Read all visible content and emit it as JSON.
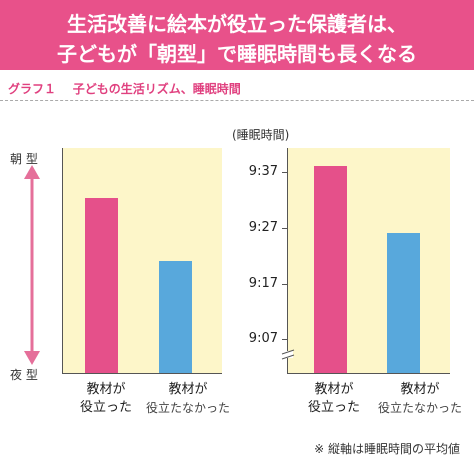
{
  "header": {
    "line1": "生活改善に絵本が役立った保護者は、",
    "line2": "子どもが「朝型」で睡眠時間も長くなる"
  },
  "subtitle": {
    "graph_label": "グラフ１",
    "text": "子どもの生活リズム、睡眠時間"
  },
  "left_chart": {
    "top_label": "朝 型",
    "bottom_label": "夜 型",
    "categories": [
      {
        "line1": "教材が",
        "line2": "役立った"
      },
      {
        "line1": "教材が",
        "line2": "役立たなかった"
      }
    ]
  },
  "right_chart": {
    "unit_label": "(睡眠時間)",
    "ticks": [
      "9:37",
      "9:27",
      "9:17",
      "9:07"
    ],
    "categories": [
      {
        "line1": "教材が",
        "line2": "役立った"
      },
      {
        "line1": "教材が",
        "line2": "役立たなかった"
      }
    ]
  },
  "footnote": "※ 縦軸は睡眠時間の平均値",
  "colors": {
    "header_bg": "#e8518a",
    "panel_bg": "#fdf6c9",
    "bar_pink": "#e5508a",
    "bar_blue": "#58a8dc",
    "arrow": "#e56f9a"
  },
  "chart_data": [
    {
      "type": "bar",
      "title": "",
      "categories": [
        "教材が役立った",
        "教材が役立たなかった"
      ],
      "values": [
        0.78,
        0.5
      ],
      "y_scale": "relative (夜型 = 0, 朝型 = 1)",
      "ylabel_top": "朝 型",
      "ylabel_bottom": "夜 型",
      "bar_colors": [
        "#e5508a",
        "#58a8dc"
      ],
      "grid": false
    },
    {
      "type": "bar",
      "title": "",
      "categories": [
        "教材が役立った",
        "教材が役立たなかった"
      ],
      "values_minutes": [
        578,
        566
      ],
      "values_display": [
        "9:38",
        "9:26"
      ],
      "ylabel": "(睡眠時間)",
      "y_ticks": [
        "9:07",
        "9:17",
        "9:27",
        "9:37"
      ],
      "axis_break": true,
      "bar_colors": [
        "#e5508a",
        "#58a8dc"
      ],
      "grid": false
    }
  ]
}
